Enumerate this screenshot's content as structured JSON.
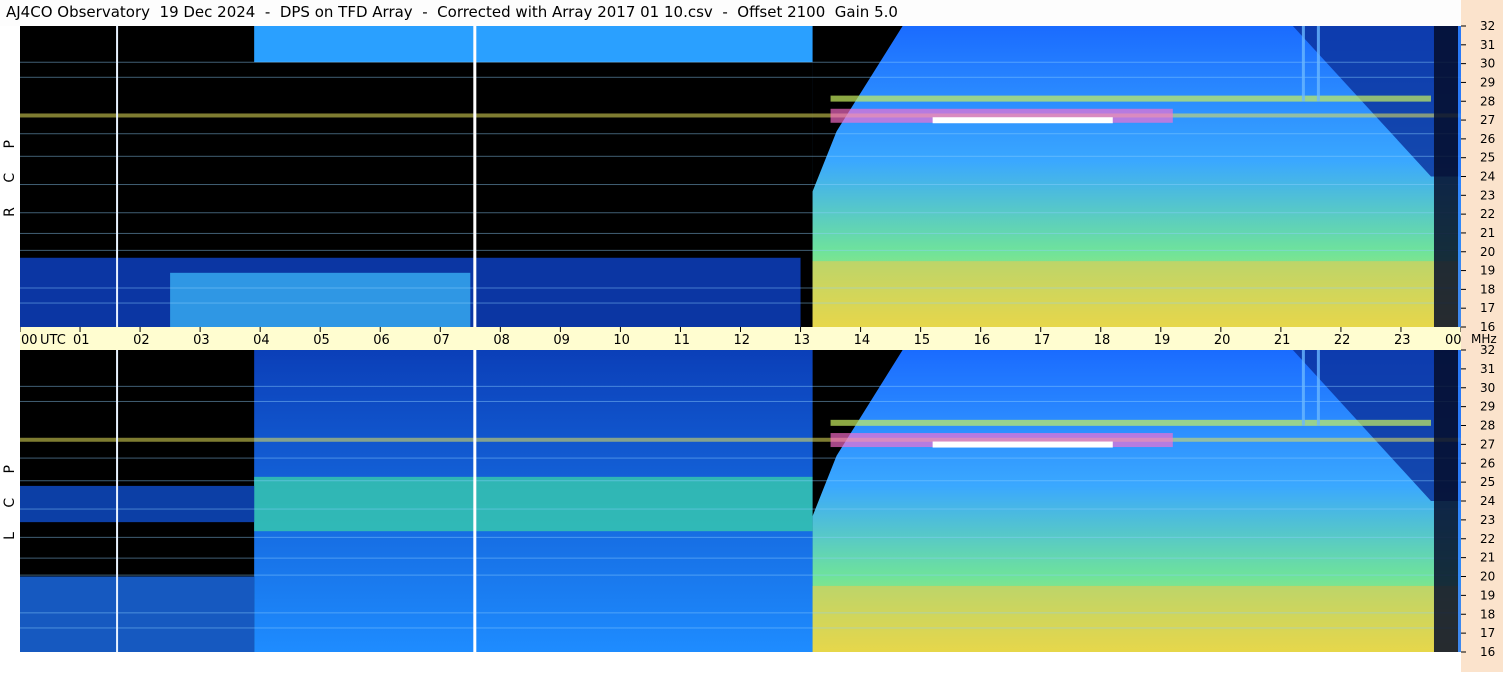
{
  "title": "AJ4CO Observatory  19 Dec 2024  -  DPS on TFD Array  -  Corrected with Array 2017 01 10.csv  -  Offset 2100  Gain 5.0",
  "colors": {
    "background": "#000000",
    "axis_band_time": "#fffdd0",
    "axis_band_freq": "#fbe3cc",
    "low": "#0a2a8a",
    "mid": "#1e7bff",
    "high": "#7fff5f",
    "peak": "#ff5fd0"
  },
  "chart_data": {
    "type": "heatmap",
    "x_unit_label": "UTC",
    "y_unit_label": "MHz",
    "x_ticks": [
      "00",
      "01",
      "02",
      "03",
      "04",
      "05",
      "06",
      "07",
      "08",
      "09",
      "10",
      "11",
      "12",
      "13",
      "14",
      "15",
      "16",
      "17",
      "18",
      "19",
      "20",
      "21",
      "22",
      "23",
      "00"
    ],
    "x_range_hours": [
      0,
      24
    ],
    "y_ticks": [
      32,
      31,
      30,
      29,
      28,
      27,
      26,
      25,
      24,
      23,
      22,
      21,
      20,
      19,
      18,
      17,
      16
    ],
    "y_range_mhz": [
      16,
      32
    ],
    "panels": [
      {
        "label": "R C P"
      },
      {
        "label": "L C P"
      }
    ]
  }
}
